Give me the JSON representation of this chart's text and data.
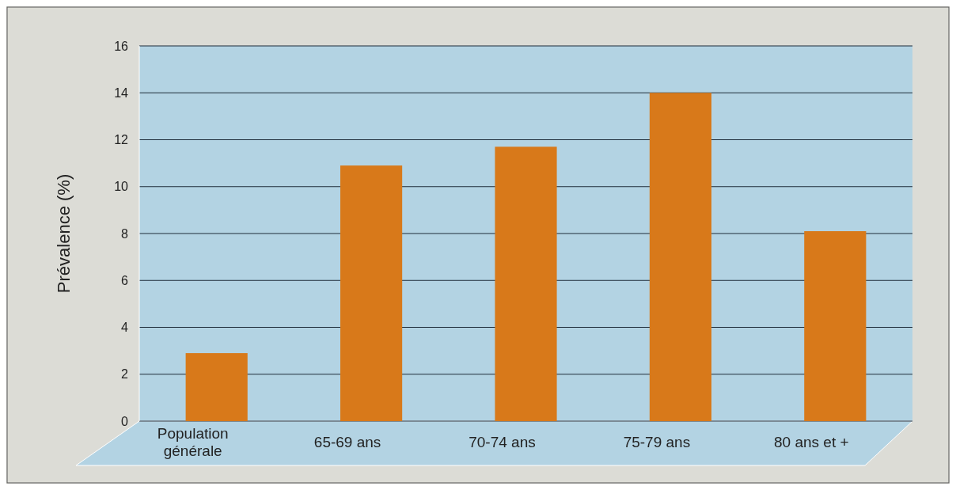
{
  "chart_data": {
    "type": "bar",
    "ylabel": "Prévalence (%)",
    "categories": [
      "Population générale",
      "65-69 ans",
      "70-74 ans",
      "75-79 ans",
      "80 ans et +"
    ],
    "values": [
      2.9,
      10.9,
      11.7,
      14.0,
      8.1
    ],
    "color": "#d8791a",
    "ylim": [
      0,
      16
    ],
    "yticks": [
      0,
      2,
      4,
      6,
      8,
      10,
      12,
      14,
      16
    ],
    "grid": "y"
  }
}
